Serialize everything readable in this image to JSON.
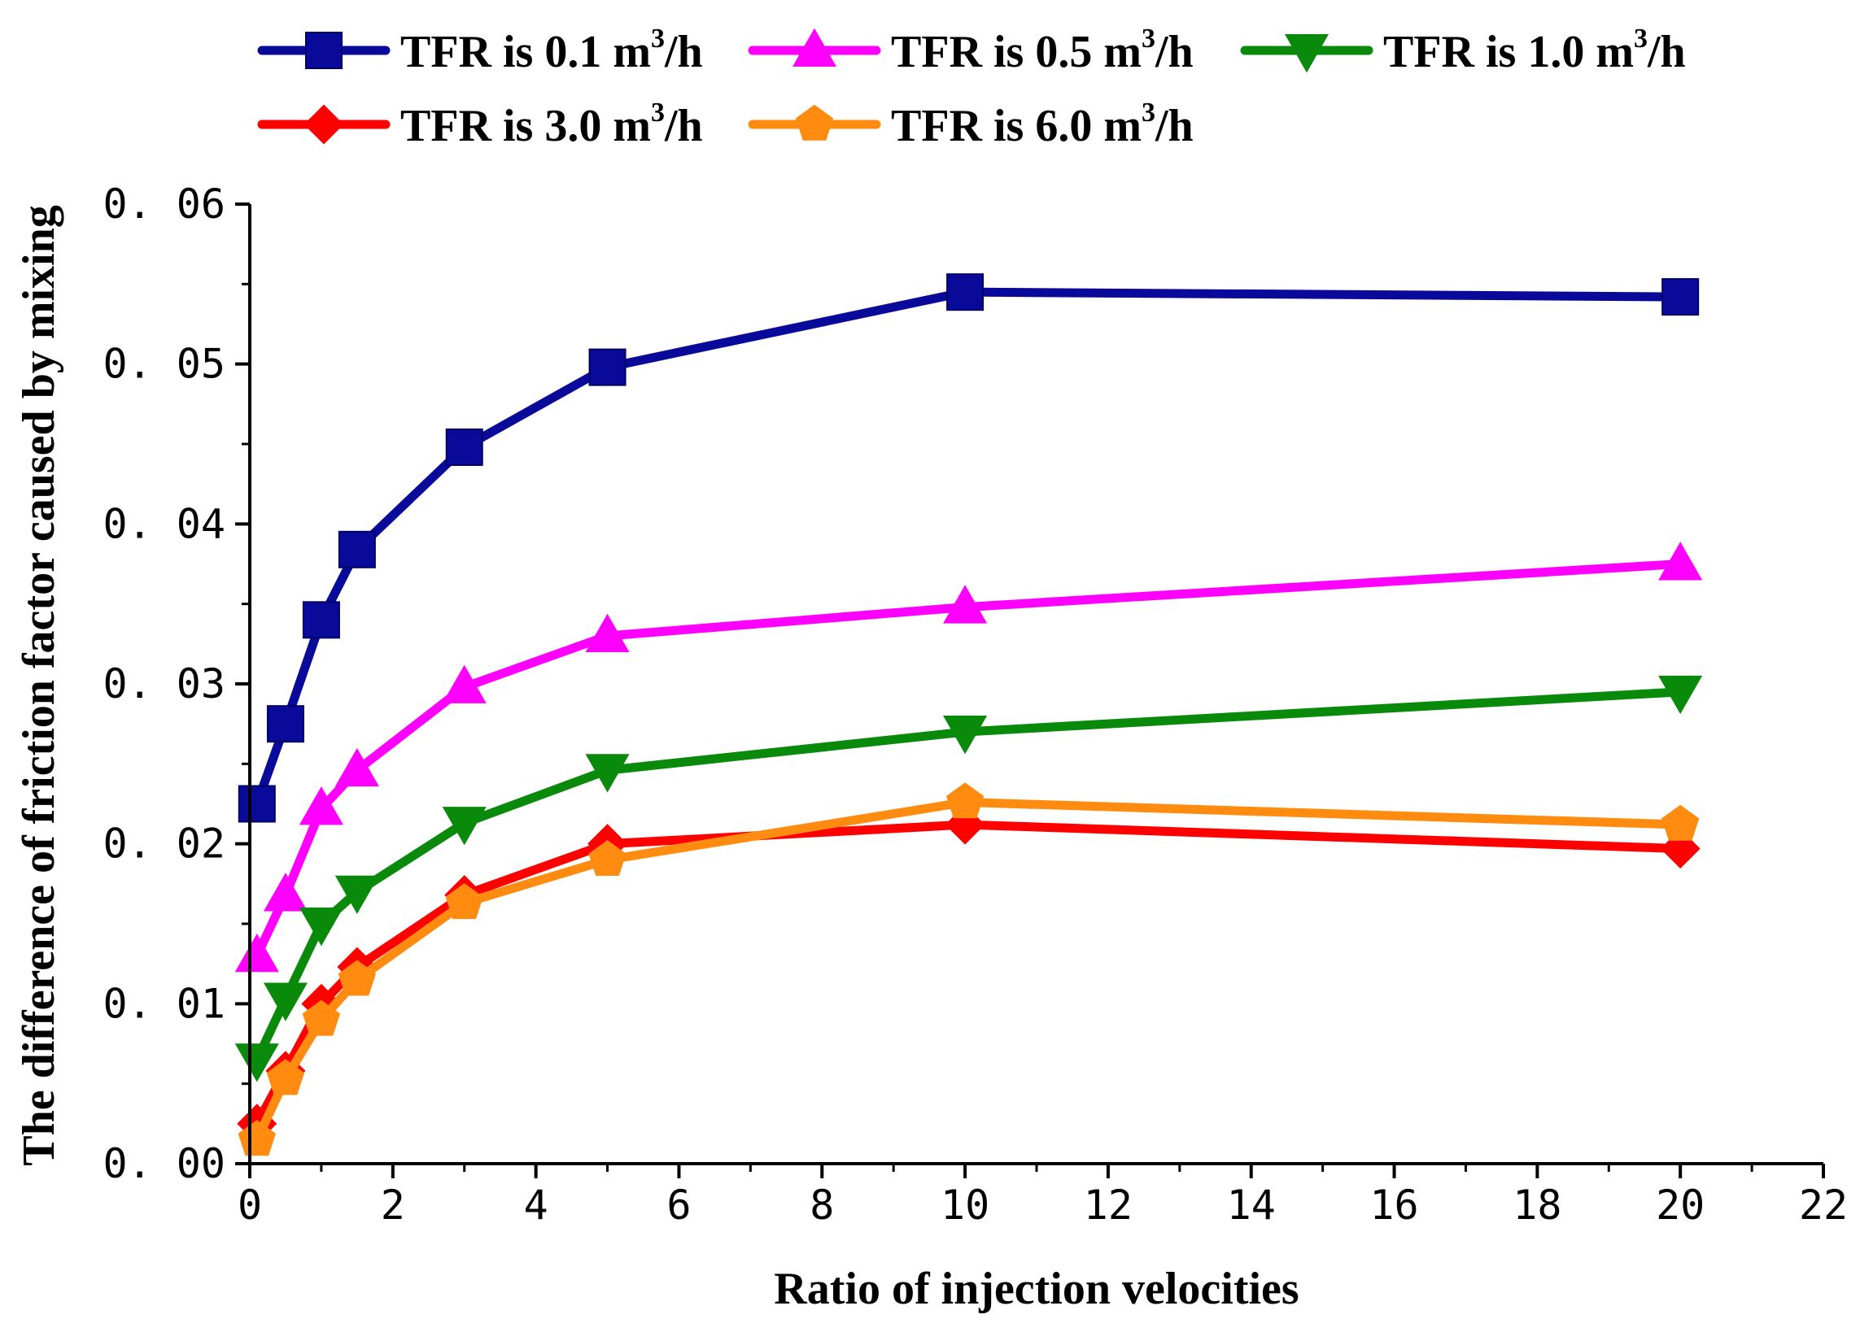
{
  "chart_data": {
    "type": "line",
    "xlabel": "Ratio of injection velocities",
    "ylabel": "The difference of friction factor caused by mixing",
    "xlim": [
      0,
      22
    ],
    "ylim": [
      0,
      0.06
    ],
    "xticks": [
      "0",
      "2",
      "4",
      "6",
      "8",
      "10",
      "12",
      "14",
      "16",
      "18",
      "20",
      "22"
    ],
    "yticks": [
      "0. 00",
      "0. 01",
      "0. 02",
      "0. 03",
      "0. 04",
      "0. 05",
      "0. 06"
    ],
    "grid": false,
    "legend_position": "top",
    "x": [
      0.1,
      0.5,
      1,
      1.5,
      3,
      5,
      10,
      20
    ],
    "series": [
      {
        "name": "TFR is 0.1 m³/h",
        "label_prefix": "TFR is 0.1 m",
        "label_sup": "3",
        "label_suffix": "/h",
        "color": "#0a0a9a",
        "marker": "square",
        "values": [
          0.0225,
          0.0275,
          0.034,
          0.0384,
          0.0448,
          0.0498,
          0.0545,
          0.0542
        ]
      },
      {
        "name": "TFR is 0.5 m³/h",
        "label_prefix": "TFR is 0.5 m",
        "label_sup": "3",
        "label_suffix": "/h",
        "color": "#ff00ff",
        "marker": "triangle-up",
        "values": [
          0.013,
          0.0168,
          0.0222,
          0.0246,
          0.0298,
          0.033,
          0.0348,
          0.0375
        ]
      },
      {
        "name": "TFR is 1.0 m³/h",
        "label_prefix": "TFR is 1.0 m",
        "label_sup": "3",
        "label_suffix": "/h",
        "color": "#0a8a0a",
        "marker": "triangle-down",
        "values": [
          0.0065,
          0.0103,
          0.015,
          0.017,
          0.0213,
          0.0246,
          0.027,
          0.0295
        ]
      },
      {
        "name": "TFR is 3.0 m³/h",
        "label_prefix": "TFR is 3.0 m",
        "label_sup": "3",
        "label_suffix": "/h",
        "color": "#ff0000",
        "marker": "diamond",
        "values": [
          0.0025,
          0.0058,
          0.01,
          0.0123,
          0.0168,
          0.02,
          0.0212,
          0.0197
        ]
      },
      {
        "name": "TFR is 6.0 m³/h",
        "label_prefix": "TFR is 6.0 m",
        "label_sup": "3",
        "label_suffix": "/h",
        "color": "#ff8c10",
        "marker": "pentagon",
        "values": [
          0.0015,
          0.0053,
          0.009,
          0.0115,
          0.0163,
          0.019,
          0.0226,
          0.0212
        ]
      }
    ]
  }
}
